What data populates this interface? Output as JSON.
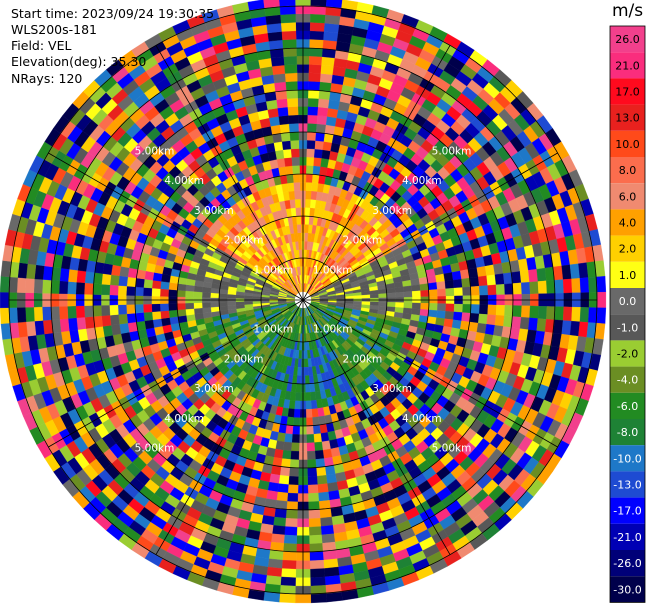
{
  "header": {
    "start_time": "Start time: 2023/09/24 19:30:35",
    "instrument": "WLS200s-181",
    "field": "Field: VEL",
    "elevation": "Elevation(deg): 35.30",
    "nrays": "NRays: 120"
  },
  "colorbar": {
    "unit": "m/s",
    "ticks": [
      "26.0",
      "21.0",
      "17.0",
      "13.0",
      "10.0",
      "8.0",
      "6.0",
      "4.0",
      "2.0",
      "1.0",
      "0.0",
      "-1.0",
      "-2.0",
      "-4.0",
      "-6.0",
      "-8.0",
      "-10.0",
      "-13.0",
      "-17.0",
      "-21.0",
      "-26.0",
      "-30.0"
    ],
    "colors": [
      "#f2408c",
      "#fa2d7d",
      "#ff0a1e",
      "#e8211e",
      "#ff4a1a",
      "#fb6d4d",
      "#f08a70",
      "#ffa000",
      "#ffd000",
      "#ffff14",
      "#696969",
      "#585858",
      "#9acd32",
      "#6b8e23",
      "#228b22",
      "#1e8235",
      "#1e78c8",
      "#1e4bd2",
      "#0000ff",
      "#0000b4",
      "#000078",
      "#00004b"
    ]
  },
  "chart_data": {
    "type": "polar-ppi",
    "field": "VEL",
    "nrays": 120,
    "range_ring_labels": [
      "1.00km",
      "2.00km",
      "3.00km",
      "4.00km",
      "5.00km"
    ],
    "spokes_deg": [
      0,
      30,
      60,
      90,
      120,
      150,
      180,
      210,
      240,
      270,
      300,
      330
    ],
    "near_range_pattern": [
      {
        "sector": "north (azimuth 300-60)",
        "range_km": "0.2-2.5",
        "velocity": "2.0 to 8.0"
      },
      {
        "sector": "east (azimuth 60-100)",
        "range_km": "0.2-1.5",
        "velocity": "-1.0 to 1.0"
      },
      {
        "sector": "south (azimuth 100-260)",
        "range_km": "0.2-2.2",
        "velocity": "-8.0 to -2.0"
      },
      {
        "sector": "west (azimuth 260-300)",
        "range_km": "0.2-1.5",
        "velocity": "-1.0 to 1.0"
      }
    ],
    "far_range": "noise, all values -30.0 to 26.0 mixed",
    "colorbar_range": [
      -30.0,
      26.0
    ],
    "unit": "m/s"
  }
}
